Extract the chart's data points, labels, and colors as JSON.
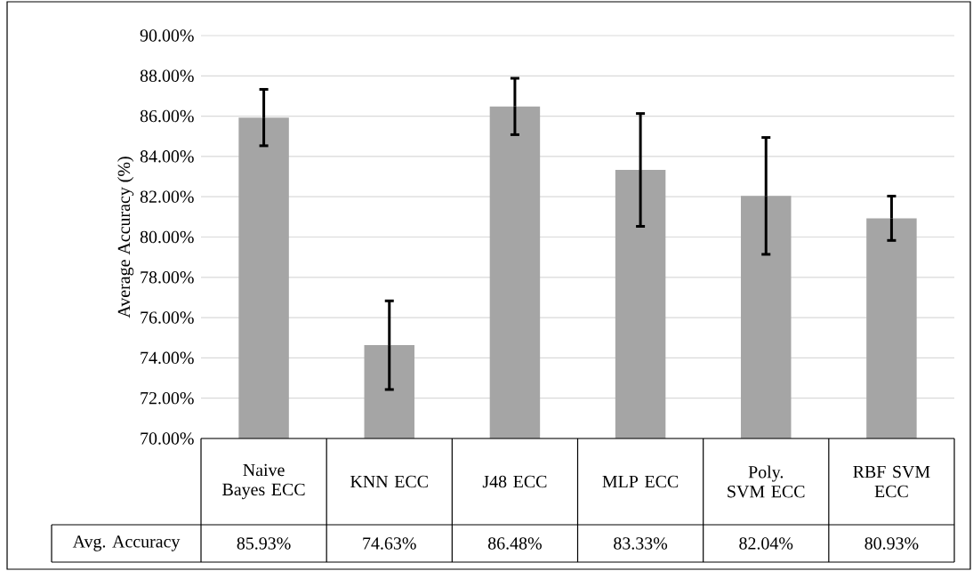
{
  "chart_data": {
    "type": "bar",
    "ylabel": "Average Accuracy (%)",
    "categories": [
      "Naive Bayes ECC",
      "KNN ECC",
      "J48 ECC",
      "MLP ECC",
      "Poly. SVM ECC",
      "RBF SVM ECC"
    ],
    "values": [
      85.93,
      74.63,
      86.48,
      83.33,
      82.04,
      80.93
    ],
    "errors": [
      1.4,
      2.2,
      1.4,
      2.8,
      2.9,
      1.1
    ],
    "value_labels": [
      "85.93%",
      "74.63%",
      "86.48%",
      "83.33%",
      "82.04%",
      "80.93%"
    ],
    "color": "#a5a5a5",
    "ylim": [
      70,
      90
    ],
    "yticks": [
      {
        "value": 70,
        "label": "70.00%"
      },
      {
        "value": 72,
        "label": "72.00%"
      },
      {
        "value": 74,
        "label": "74.00%"
      },
      {
        "value": 76,
        "label": "76.00%"
      },
      {
        "value": 78,
        "label": "78.00%"
      },
      {
        "value": 80,
        "label": "80.00%"
      },
      {
        "value": 82,
        "label": "82.00%"
      },
      {
        "value": 84,
        "label": "84.00%"
      },
      {
        "value": 86,
        "label": "86.00%"
      },
      {
        "value": 88,
        "label": "88.00%"
      },
      {
        "value": 90,
        "label": "90.00%"
      }
    ],
    "grid": "y",
    "annotations": [
      "Avg. Accuracy"
    ]
  }
}
